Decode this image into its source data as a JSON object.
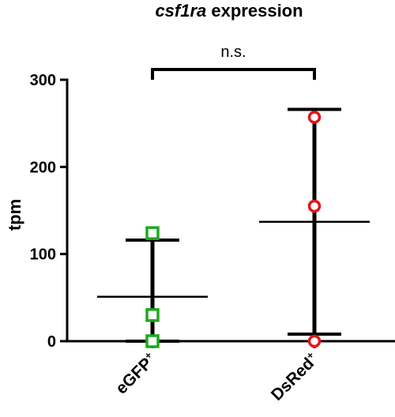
{
  "chart_data": {
    "type": "scatter",
    "title_gene": "csf1ra",
    "title_rest": " expression",
    "ylabel": "tpm",
    "xlabel": "",
    "ylim": [
      0,
      300
    ],
    "yticks": [
      0,
      100,
      200,
      300
    ],
    "categories": [
      "eGFP",
      "DsRed"
    ],
    "category_superscripts": [
      "+",
      "+"
    ],
    "groups": [
      {
        "name": "eGFP",
        "points": [
          124,
          30,
          0
        ],
        "mean": 51,
        "sd_upper": 116,
        "sd_lower": 0,
        "color": "#1fa81f",
        "marker": "square"
      },
      {
        "name": "DsRed",
        "points": [
          257,
          155,
          0
        ],
        "mean": 137,
        "sd_upper": 266,
        "sd_lower": 8,
        "color": "#e0161b",
        "marker": "circle"
      }
    ],
    "significance": {
      "label": "n.s.",
      "between": [
        "eGFP",
        "DsRed"
      ]
    },
    "grid": false
  }
}
